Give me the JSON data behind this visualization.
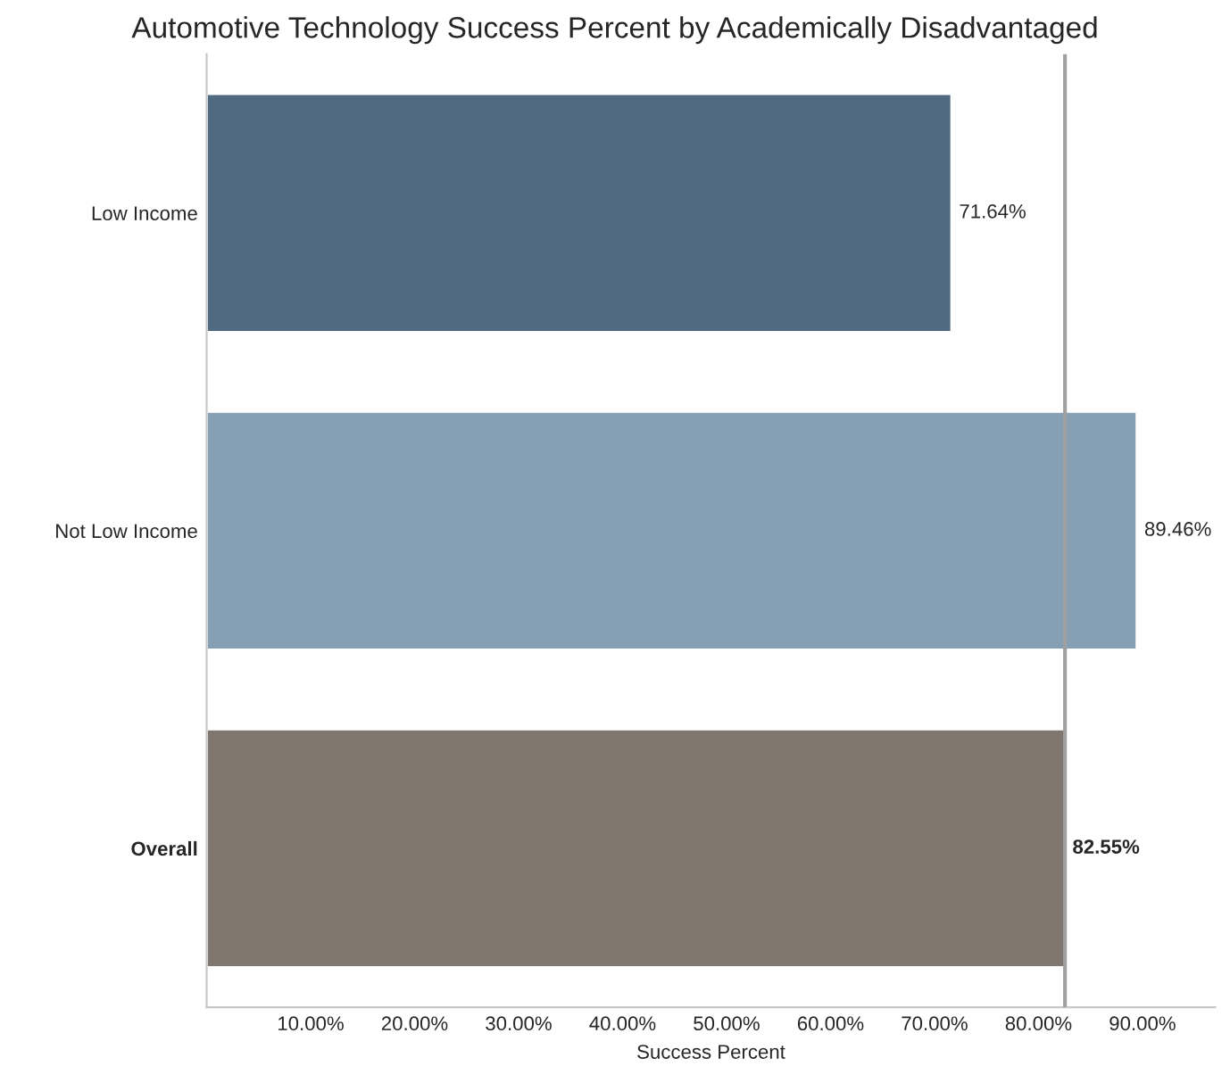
{
  "chart_data": {
    "type": "bar",
    "orientation": "horizontal",
    "title": "Automotive Technology Success Percent by Academically Disadvantaged",
    "xlabel": "Success Percent",
    "categories": [
      "Low Income",
      "Not Low Income",
      "Overall"
    ],
    "values": [
      71.64,
      89.46,
      82.55
    ],
    "colors": [
      "#506a82",
      "#879fb3",
      "#7f776d"
    ],
    "value_labels": [
      "71.64%",
      "89.46%",
      "82.55%"
    ],
    "xlim": [
      0,
      97
    ],
    "xticks": [
      {
        "value": 10,
        "label": "10.00%"
      },
      {
        "value": 20,
        "label": "20.00%"
      },
      {
        "value": 30,
        "label": "30.00%"
      },
      {
        "value": 40,
        "label": "40.00%"
      },
      {
        "value": 50,
        "label": "50.00%"
      },
      {
        "value": 60,
        "label": "60.00%"
      },
      {
        "value": 70,
        "label": "70.00%"
      },
      {
        "value": 80,
        "label": "80.00%"
      },
      {
        "value": 90,
        "label": "90.00%"
      }
    ],
    "ref_lines": [
      {
        "axis": "x",
        "value": 82.55,
        "color": "#a0a0a0"
      }
    ],
    "grid": false,
    "legend": false
  }
}
